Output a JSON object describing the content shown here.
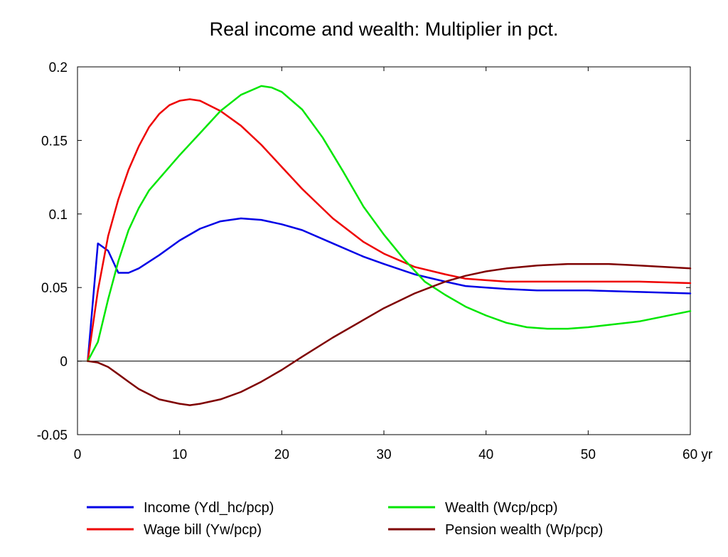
{
  "chart_data": {
    "type": "line",
    "title": "Real income and wealth: Multiplier in pct.",
    "xlabel": "",
    "ylabel": "",
    "x_unit": "yr",
    "xlim": [
      0,
      60
    ],
    "ylim": [
      -0.05,
      0.2
    ],
    "x_ticks": [
      0,
      10,
      20,
      30,
      40,
      50,
      60
    ],
    "x_tick_labels": [
      "0",
      "10",
      "20",
      "30",
      "40",
      "50",
      "60 yr"
    ],
    "y_ticks": [
      -0.05,
      0,
      0.05,
      0.1,
      0.15,
      0.2
    ],
    "y_tick_labels": [
      "-0.05",
      "0",
      "0.05",
      "0.1",
      "0.15",
      "0.2"
    ],
    "grid": false,
    "zero_line": true,
    "legend_position": "bottom",
    "series": [
      {
        "name": "Income (Ydl_hc/pcp)",
        "color": "#0000e6",
        "x": [
          1,
          2,
          3,
          4,
          5,
          6,
          8,
          10,
          12,
          14,
          16,
          18,
          20,
          22,
          25,
          28,
          30,
          33,
          36,
          38,
          40,
          42,
          45,
          50,
          55,
          60
        ],
        "y": [
          0.0,
          0.08,
          0.075,
          0.06,
          0.06,
          0.063,
          0.072,
          0.082,
          0.09,
          0.095,
          0.097,
          0.096,
          0.093,
          0.089,
          0.08,
          0.071,
          0.066,
          0.059,
          0.054,
          0.051,
          0.05,
          0.049,
          0.048,
          0.048,
          0.047,
          0.046
        ]
      },
      {
        "name": "Wage bill (Yw/pcp)",
        "color": "#ee0000",
        "x": [
          1,
          2,
          3,
          4,
          5,
          6,
          7,
          8,
          9,
          10,
          11,
          12,
          14,
          16,
          18,
          20,
          22,
          25,
          28,
          30,
          33,
          36,
          38,
          40,
          42,
          45,
          50,
          55,
          60
        ],
        "y": [
          0.0,
          0.048,
          0.085,
          0.11,
          0.13,
          0.146,
          0.159,
          0.168,
          0.174,
          0.177,
          0.178,
          0.177,
          0.17,
          0.16,
          0.147,
          0.132,
          0.117,
          0.097,
          0.081,
          0.073,
          0.064,
          0.059,
          0.056,
          0.055,
          0.054,
          0.054,
          0.054,
          0.054,
          0.053
        ]
      },
      {
        "name": "Wealth (Wcp/pcp)",
        "color": "#00e600",
        "x": [
          1,
          2,
          3,
          4,
          5,
          6,
          7,
          8,
          10,
          12,
          14,
          16,
          18,
          19,
          20,
          22,
          24,
          26,
          28,
          30,
          32,
          34,
          36,
          38,
          40,
          42,
          44,
          46,
          48,
          50,
          55,
          60
        ],
        "y": [
          0.0,
          0.013,
          0.042,
          0.068,
          0.089,
          0.104,
          0.116,
          0.124,
          0.14,
          0.155,
          0.17,
          0.181,
          0.187,
          0.186,
          0.183,
          0.171,
          0.152,
          0.129,
          0.105,
          0.086,
          0.069,
          0.054,
          0.045,
          0.037,
          0.031,
          0.026,
          0.023,
          0.022,
          0.022,
          0.023,
          0.027,
          0.034
        ]
      },
      {
        "name": "Pension wealth (Wp/pcp)",
        "color": "#7f0000",
        "x": [
          1,
          2,
          3,
          4,
          5,
          6,
          8,
          10,
          11,
          12,
          14,
          16,
          18,
          20,
          22,
          25,
          28,
          30,
          33,
          36,
          38,
          40,
          42,
          45,
          48,
          50,
          52,
          55,
          60
        ],
        "y": [
          0.0,
          -0.001,
          -0.004,
          -0.009,
          -0.014,
          -0.019,
          -0.026,
          -0.029,
          -0.03,
          -0.029,
          -0.026,
          -0.021,
          -0.014,
          -0.006,
          0.003,
          0.016,
          0.028,
          0.036,
          0.046,
          0.054,
          0.058,
          0.061,
          0.063,
          0.065,
          0.066,
          0.066,
          0.066,
          0.065,
          0.063
        ]
      }
    ]
  }
}
